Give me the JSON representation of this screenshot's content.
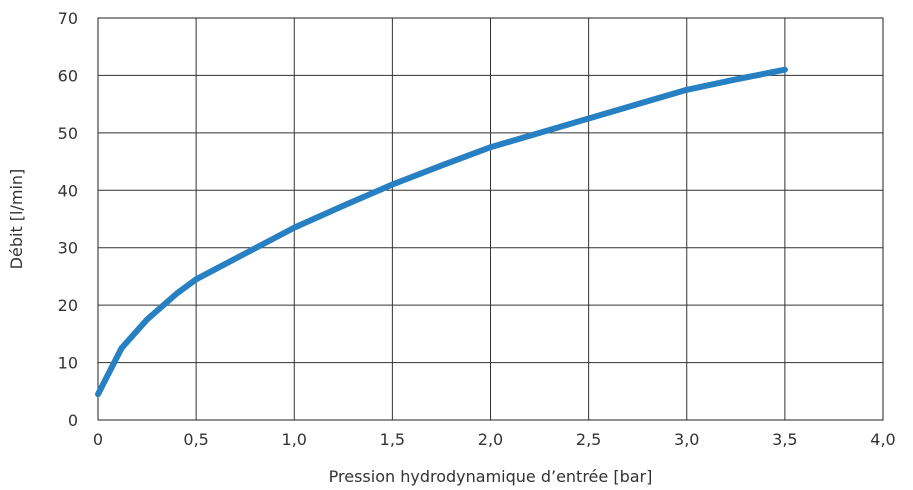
{
  "chart_data": {
    "type": "line",
    "title": "",
    "xlabel": "Pression hydrodynamique d’entrée [bar]",
    "ylabel": "Débit [l/min]",
    "xlim": [
      0,
      4.0
    ],
    "ylim": [
      0,
      70
    ],
    "x_ticks": [
      0,
      0.5,
      1.0,
      1.5,
      2.0,
      2.5,
      3.0,
      3.5,
      4.0
    ],
    "x_tick_labels": [
      "0",
      "0,5",
      "1,0",
      "1,5",
      "2,0",
      "2,5",
      "3,0",
      "3,5",
      "4,0"
    ],
    "y_ticks": [
      0,
      10,
      20,
      30,
      40,
      50,
      60,
      70
    ],
    "y_tick_labels": [
      "0",
      "10",
      "20",
      "30",
      "40",
      "50",
      "60",
      "70"
    ],
    "grid": true,
    "legend": "none",
    "series": [
      {
        "color": "#2680c2",
        "x": [
          0.0,
          0.12,
          0.25,
          0.4,
          0.5,
          0.75,
          1.0,
          1.25,
          1.5,
          1.75,
          2.0,
          2.25,
          2.5,
          2.75,
          3.0,
          3.25,
          3.5
        ],
        "y": [
          4.5,
          12.5,
          17.5,
          22.0,
          24.5,
          29.0,
          33.5,
          37.3,
          41.0,
          44.3,
          47.5,
          50.0,
          52.5,
          55.0,
          57.5,
          59.3,
          61.0
        ]
      }
    ]
  }
}
